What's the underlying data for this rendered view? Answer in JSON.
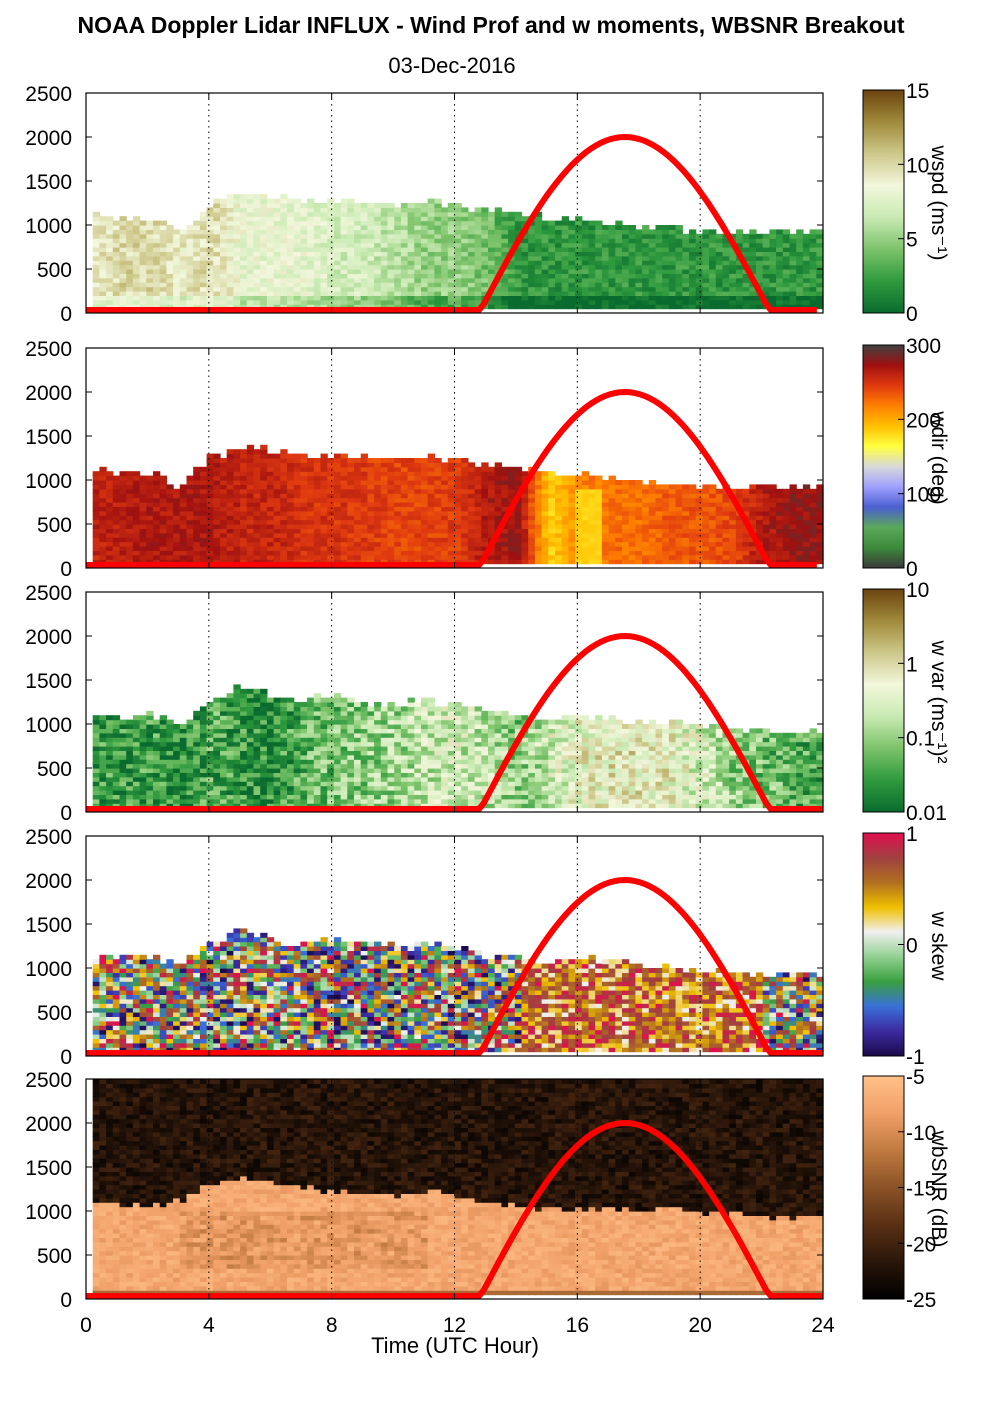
{
  "title": "NOAA Doppler Lidar INFLUX - Wind Prof and w moments, WBSNR Breakout",
  "subtitle": "03-Dec-2016",
  "xlabel": "Time (UTC Hour)",
  "colors": {
    "sun_curve": "#ff0000",
    "background": "#ffffff"
  },
  "chart_data": [
    {
      "type": "heatmap",
      "variable": "wspd",
      "colorbar_label": "wspd (ms⁻¹)",
      "colorbar_ticks": [
        "15",
        "10",
        "5",
        "0"
      ],
      "clim": [
        0,
        15
      ],
      "colormap": [
        "#0a6b2e",
        "#2f9a3e",
        "#7cc36a",
        "#c9eab3",
        "#f3f7dc",
        "#cdc88a",
        "#a08a3a",
        "#6b4310"
      ],
      "x_range": [
        0,
        24
      ],
      "y_range": [
        0,
        2500
      ],
      "x_ticks": [
        "0",
        "4",
        "8",
        "12",
        "16",
        "20",
        "24"
      ],
      "y_ticks": [
        "0",
        "500",
        "1000",
        "1500",
        "2000",
        "2500"
      ],
      "data_top_m": [
        1100,
        1050,
        1050,
        900,
        1250,
        1350,
        1300,
        1250,
        1250,
        1250,
        1200,
        1250,
        1200,
        1150,
        1100,
        1050,
        1050,
        1000,
        950,
        950,
        900,
        900,
        900,
        900,
        900
      ],
      "value_profile_ms": [
        9,
        10,
        10,
        9,
        10,
        8,
        8,
        8,
        7,
        7,
        6,
        5,
        5,
        4,
        2,
        2,
        2,
        2,
        2,
        2,
        2,
        2,
        2,
        2,
        2
      ],
      "sun_curve_peak_m": 2000,
      "sun_curve_span_hours": [
        12.8,
        22.3
      ]
    },
    {
      "type": "heatmap",
      "variable": "wdir",
      "colorbar_label": "wdir (deg)",
      "colorbar_ticks": [
        "300",
        "200",
        "100",
        "0"
      ],
      "clim": [
        0,
        360
      ],
      "colormap": [
        "#3a3a3a",
        "#3c8a3c",
        "#5aa85a",
        "#4a5fd0",
        "#a0a0ff",
        "#d8d8d8",
        "#ffff40",
        "#ffc000",
        "#ff8000",
        "#e03a10",
        "#a01010",
        "#404040"
      ],
      "x_range": [
        0,
        24
      ],
      "y_range": [
        0,
        2500
      ],
      "x_ticks": [
        "0",
        "4",
        "8",
        "12",
        "16",
        "20",
        "24"
      ],
      "y_ticks": [
        "0",
        "500",
        "1000",
        "1500",
        "2000",
        "2500"
      ],
      "data_top_m": [
        1100,
        1050,
        1050,
        900,
        1250,
        1350,
        1300,
        1250,
        1250,
        1250,
        1200,
        1250,
        1200,
        1150,
        1100,
        1050,
        1050,
        1000,
        950,
        950,
        900,
        900,
        900,
        900,
        900
      ],
      "value_profile_deg": [
        310,
        315,
        320,
        320,
        320,
        310,
        310,
        300,
        300,
        295,
        290,
        290,
        295,
        320,
        330,
        220,
        260,
        270,
        270,
        280,
        280,
        290,
        320,
        330,
        330
      ],
      "sun_curve_peak_m": 2000,
      "sun_curve_span_hours": [
        12.8,
        22.3
      ]
    },
    {
      "type": "heatmap",
      "variable": "w var",
      "colorbar_label": "w var (ms⁻¹)²",
      "colorbar_ticks": [
        "10",
        "1",
        "0.1",
        "0.01"
      ],
      "clim": [
        0.01,
        10
      ],
      "log_scale": true,
      "colormap": [
        "#0a6b2e",
        "#2f9a3e",
        "#7cc36a",
        "#c9eab3",
        "#f3f7dc",
        "#cdc88a",
        "#a08a3a",
        "#6b4310"
      ],
      "x_range": [
        0,
        24
      ],
      "y_range": [
        0,
        2500
      ],
      "x_ticks": [
        "0",
        "4",
        "8",
        "12",
        "16",
        "20",
        "24"
      ],
      "y_ticks": [
        "0",
        "500",
        "1000",
        "1500",
        "2000",
        "2500"
      ],
      "data_top_m": [
        1100,
        1050,
        1100,
        950,
        1250,
        1400,
        1300,
        1250,
        1300,
        1200,
        1200,
        1250,
        1200,
        1100,
        1100,
        1050,
        1050,
        1050,
        1000,
        1000,
        950,
        950,
        900,
        900,
        900
      ],
      "value_profile_log": [
        -1.5,
        -1.6,
        -1.5,
        -1.7,
        -1.4,
        -1.6,
        -1.7,
        -1.3,
        -1.2,
        -1.0,
        -0.9,
        -0.7,
        -0.6,
        -0.8,
        -1.1,
        -0.6,
        -0.3,
        -0.2,
        -0.2,
        -0.3,
        -0.6,
        -1.0,
        -1.2,
        -1.4,
        -1.4
      ],
      "sun_curve_peak_m": 2000,
      "sun_curve_span_hours": [
        12.8,
        22.3
      ]
    },
    {
      "type": "heatmap",
      "variable": "w skew",
      "colorbar_label": "w skew",
      "colorbar_ticks": [
        "1",
        "0",
        "-1"
      ],
      "clim": [
        -1,
        1
      ],
      "colormap": [
        "#1a0a4a",
        "#3c2aa0",
        "#3a6fd8",
        "#3aa040",
        "#90d090",
        "#f0f0f0",
        "#f0c000",
        "#b07020",
        "#a04040",
        "#e01050"
      ],
      "x_range": [
        0,
        24
      ],
      "y_range": [
        0,
        2500
      ],
      "x_ticks": [
        "0",
        "4",
        "8",
        "12",
        "16",
        "20",
        "24"
      ],
      "y_ticks": [
        "0",
        "500",
        "1000",
        "1500",
        "2000",
        "2500"
      ],
      "data_top_m": [
        1100,
        1100,
        1100,
        1000,
        1300,
        1400,
        1300,
        1250,
        1300,
        1250,
        1250,
        1250,
        1200,
        1100,
        1100,
        1050,
        1100,
        1050,
        1000,
        1000,
        950,
        950,
        900,
        900,
        900
      ],
      "sun_curve_peak_m": 2000,
      "sun_curve_span_hours": [
        12.8,
        22.3
      ]
    },
    {
      "type": "heatmap",
      "variable": "wbSNR",
      "colorbar_label": "wbSNR (dB)",
      "colorbar_ticks": [
        "-5",
        "-10",
        "-15",
        "-20",
        "-25"
      ],
      "clim": [
        -25,
        -5
      ],
      "colormap": [
        "#000000",
        "#2a160a",
        "#5a3014",
        "#8a5226",
        "#c07a40",
        "#f0a068",
        "#ffc088"
      ],
      "x_range": [
        0,
        24
      ],
      "y_range": [
        0,
        2500
      ],
      "x_ticks": [
        "0",
        "4",
        "8",
        "12",
        "16",
        "20",
        "24"
      ],
      "x_tick_labels": [
        "0",
        "4",
        "8",
        "12",
        "16",
        "20",
        "24"
      ],
      "y_ticks": [
        "0",
        "500",
        "1000",
        "1500",
        "2000",
        "2500"
      ],
      "boundary_m": [
        1100,
        1050,
        1050,
        1100,
        1300,
        1350,
        1300,
        1250,
        1200,
        1200,
        1150,
        1200,
        1150,
        1050,
        1050,
        1000,
        1000,
        1000,
        1000,
        1000,
        950,
        950,
        900,
        900,
        900
      ],
      "sun_curve_peak_m": 2000,
      "sun_curve_span_hours": [
        12.8,
        22.3
      ]
    }
  ]
}
